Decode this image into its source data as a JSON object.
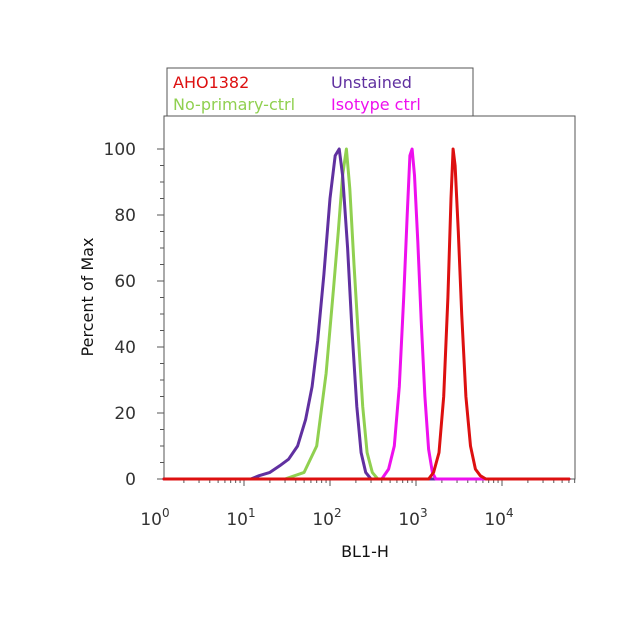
{
  "chart_data": {
    "type": "line",
    "title": "",
    "xlabel": "BL1-H",
    "ylabel": "Percent of Max",
    "x_scale": "log",
    "xlim": [
      1,
      60000
    ],
    "ylim": [
      0,
      105
    ],
    "x_ticks": [
      {
        "value": 1,
        "base": "10",
        "exp": "0"
      },
      {
        "value": 10,
        "base": "10",
        "exp": "1"
      },
      {
        "value": 100,
        "base": "10",
        "exp": "2"
      },
      {
        "value": 1000,
        "base": "10",
        "exp": "3"
      },
      {
        "value": 10000,
        "base": "10",
        "exp": "4"
      }
    ],
    "y_ticks": [
      {
        "value": 0,
        "label": "0"
      },
      {
        "value": 20,
        "label": "20"
      },
      {
        "value": 40,
        "label": "40"
      },
      {
        "value": 60,
        "label": "60"
      },
      {
        "value": 80,
        "label": "80"
      },
      {
        "value": 100,
        "label": "100"
      }
    ],
    "grid": false,
    "legend_position": "top-left",
    "series": [
      {
        "name": "No-primary-ctrl",
        "color": "#90d050",
        "points": [
          [
            1,
            0
          ],
          [
            30,
            0
          ],
          [
            50,
            2
          ],
          [
            70,
            10
          ],
          [
            90,
            32
          ],
          [
            110,
            58
          ],
          [
            125,
            75
          ],
          [
            140,
            92
          ],
          [
            155,
            100
          ],
          [
            170,
            88
          ],
          [
            190,
            65
          ],
          [
            215,
            42
          ],
          [
            240,
            22
          ],
          [
            270,
            8
          ],
          [
            310,
            2
          ],
          [
            360,
            0
          ],
          [
            60000,
            0
          ]
        ]
      },
      {
        "name": "Unstained",
        "color": "#6030a0",
        "points": [
          [
            1,
            0
          ],
          [
            12,
            0
          ],
          [
            15,
            1
          ],
          [
            20,
            2
          ],
          [
            26,
            4
          ],
          [
            33,
            6
          ],
          [
            42,
            10
          ],
          [
            52,
            18
          ],
          [
            62,
            28
          ],
          [
            72,
            42
          ],
          [
            85,
            62
          ],
          [
            100,
            85
          ],
          [
            115,
            98
          ],
          [
            128,
            100
          ],
          [
            140,
            92
          ],
          [
            160,
            70
          ],
          [
            180,
            45
          ],
          [
            205,
            22
          ],
          [
            230,
            8
          ],
          [
            260,
            2
          ],
          [
            300,
            0
          ],
          [
            60000,
            0
          ]
        ]
      },
      {
        "name": "Isotype ctrl",
        "color": "#ee10ee",
        "points": [
          [
            1,
            0
          ],
          [
            400,
            0
          ],
          [
            480,
            3
          ],
          [
            560,
            10
          ],
          [
            640,
            28
          ],
          [
            720,
            55
          ],
          [
            790,
            80
          ],
          [
            850,
            98
          ],
          [
            900,
            100
          ],
          [
            960,
            92
          ],
          [
            1050,
            72
          ],
          [
            1150,
            48
          ],
          [
            1270,
            25
          ],
          [
            1400,
            9
          ],
          [
            1550,
            2
          ],
          [
            1700,
            0
          ],
          [
            60000,
            0
          ]
        ]
      },
      {
        "name": "AHO1382",
        "color": "#dd1010",
        "points": [
          [
            1,
            0
          ],
          [
            1400,
            0
          ],
          [
            1600,
            2
          ],
          [
            1850,
            8
          ],
          [
            2100,
            25
          ],
          [
            2350,
            55
          ],
          [
            2550,
            85
          ],
          [
            2700,
            100
          ],
          [
            2850,
            95
          ],
          [
            3100,
            75
          ],
          [
            3400,
            50
          ],
          [
            3800,
            25
          ],
          [
            4300,
            10
          ],
          [
            4900,
            3
          ],
          [
            5600,
            1
          ],
          [
            6500,
            0
          ],
          [
            60000,
            0
          ]
        ]
      }
    ],
    "legend": [
      {
        "label": "AHO1382",
        "color": "#dd1010"
      },
      {
        "label": "Unstained",
        "color": "#6030a0"
      },
      {
        "label": "No-primary-ctrl",
        "color": "#90d050"
      },
      {
        "label": "Isotype ctrl",
        "color": "#ee10ee"
      }
    ]
  }
}
